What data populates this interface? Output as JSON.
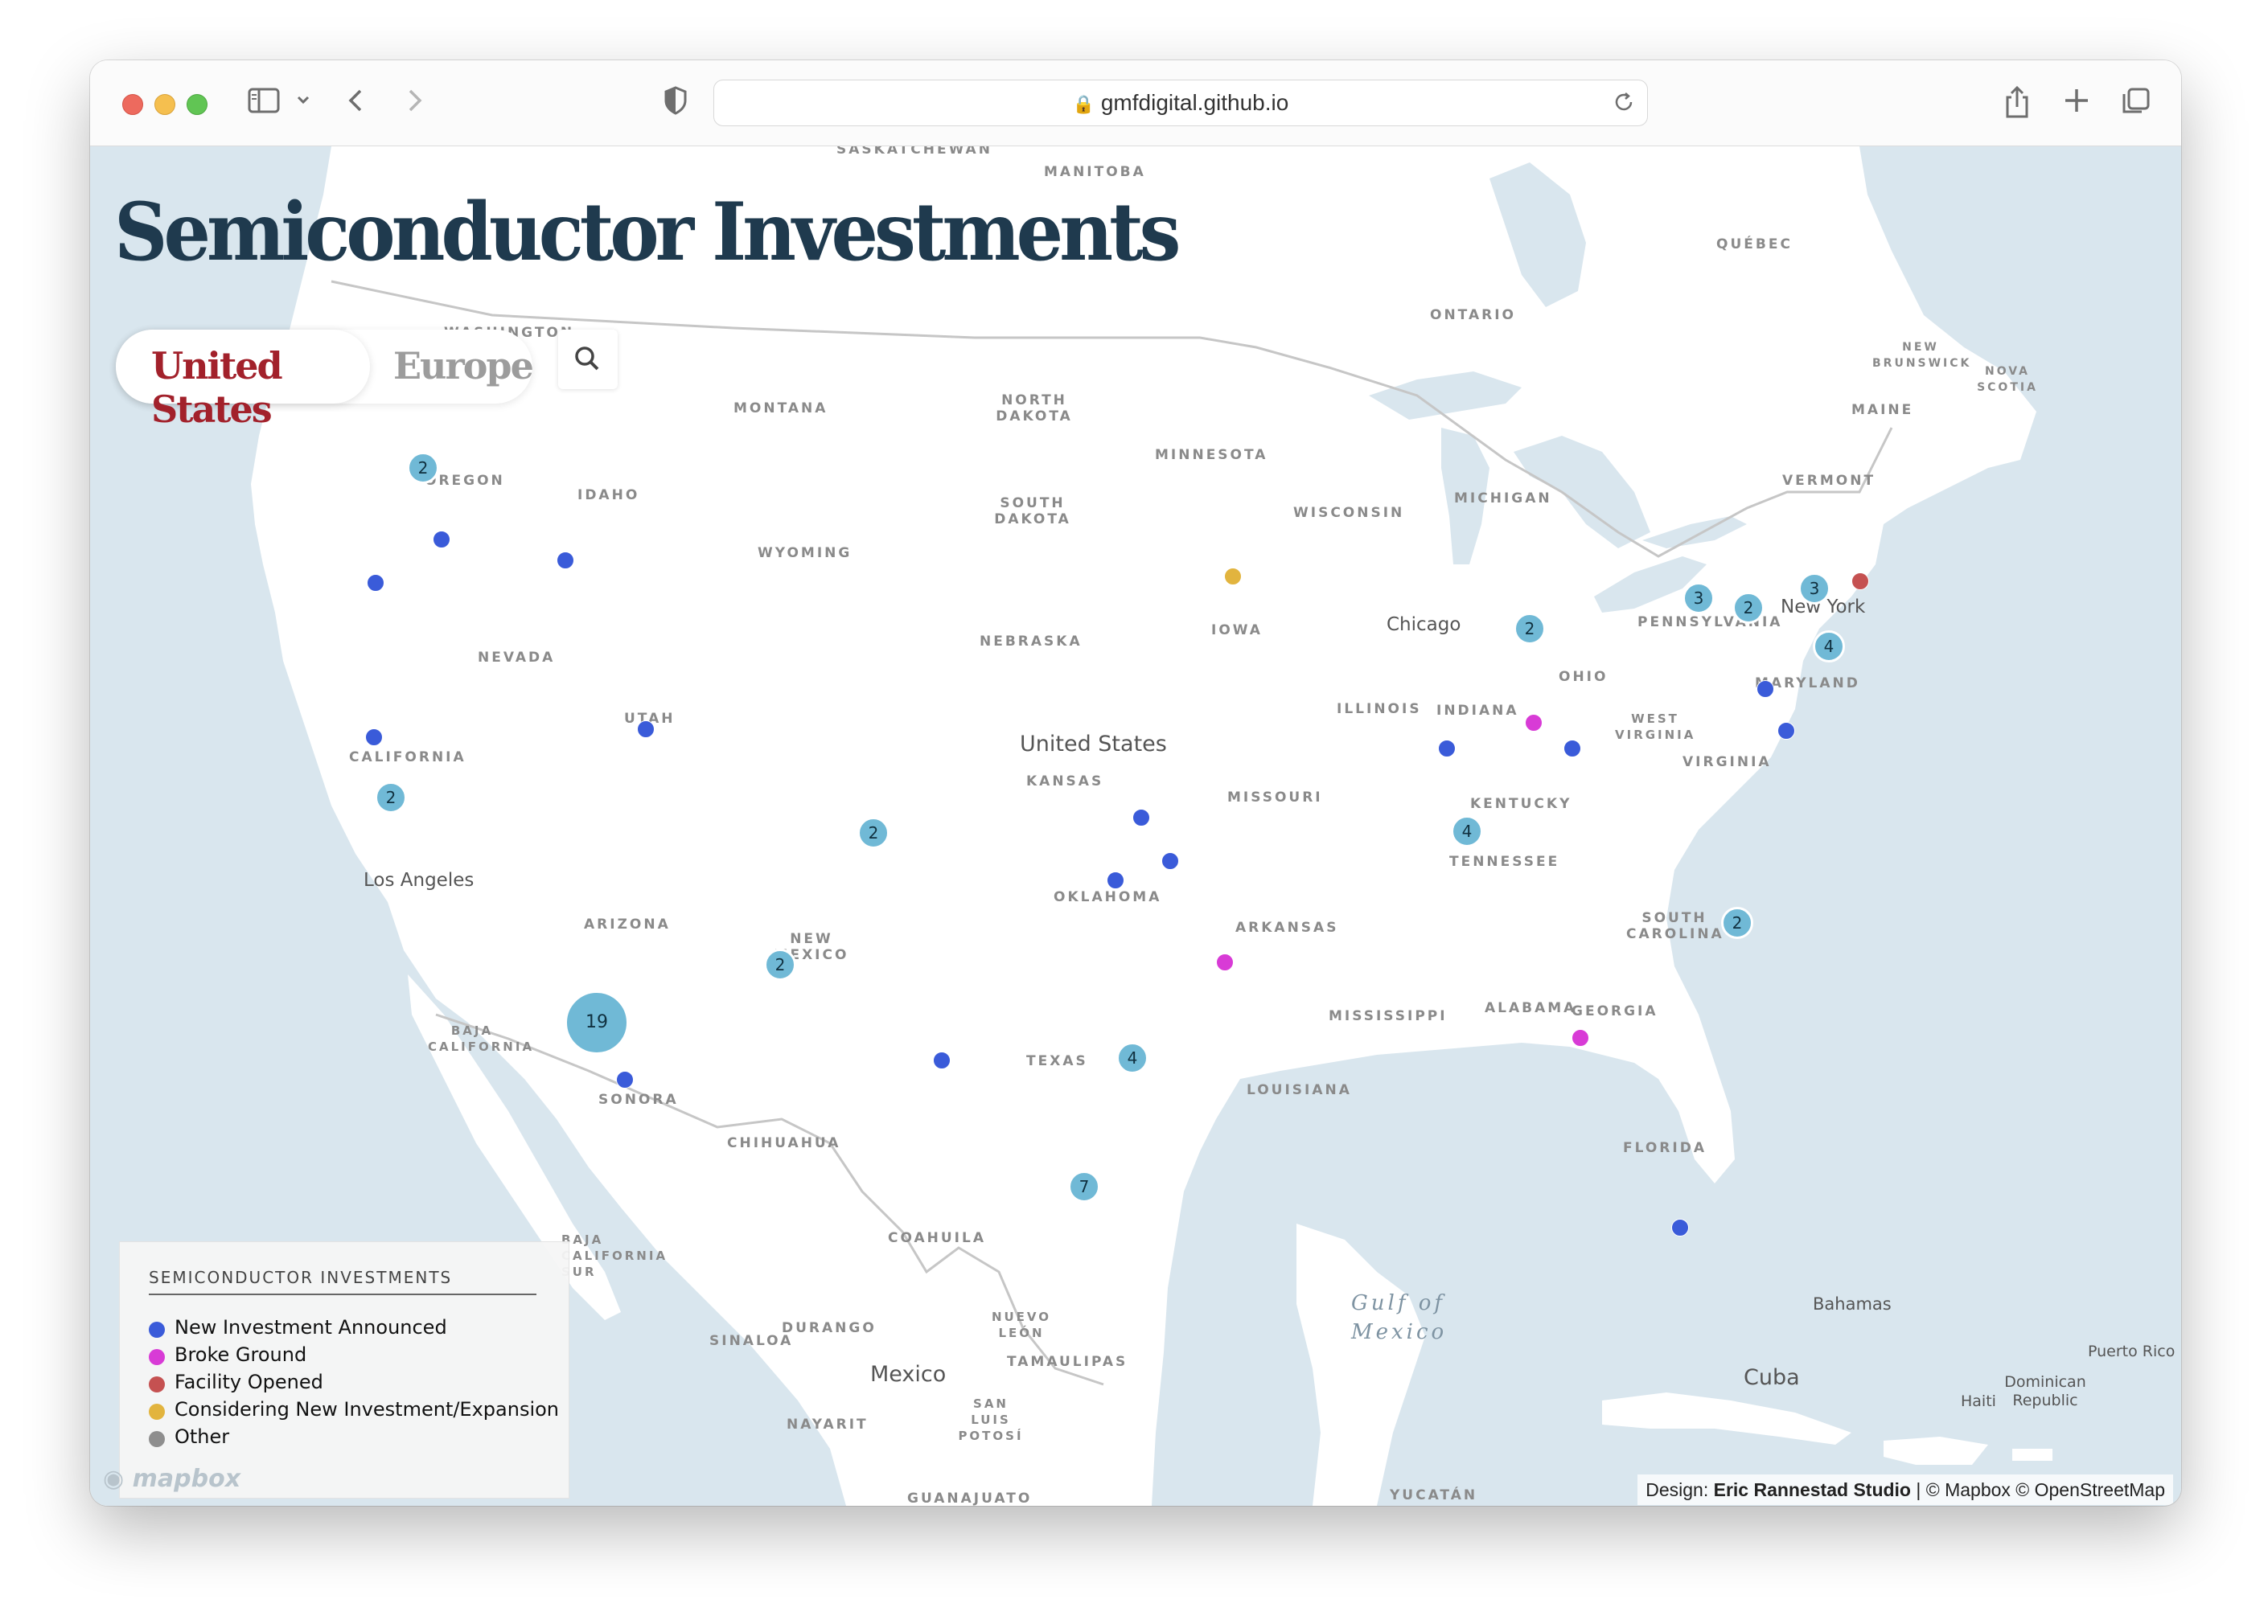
{
  "browser": {
    "url": "gmfdigital.github.io"
  },
  "page": {
    "title": "Semiconductor Investments",
    "tabs": [
      {
        "label": "United States",
        "active": true
      },
      {
        "label": "Europe",
        "active": false
      }
    ],
    "search_icon": "search-icon"
  },
  "map_labels": {
    "regions": [
      "SASKATCHEWAN",
      "MANITOBA",
      "QUÉBEC",
      "ONTARIO",
      "NEW BRUNSWICK",
      "NOVA SCOTIA",
      "WASHINGTON",
      "MONTANA",
      "NORTH DAKOTA",
      "MINNESOTA",
      "MAINE",
      "VERMONT",
      "OREGON",
      "IDAHO",
      "SOUTH DAKOTA",
      "WISCONSIN",
      "MICHIGAN",
      "WYOMING",
      "PENNSYLVANIA",
      "NEBRASKA",
      "IOWA",
      "NEVADA",
      "OHIO",
      "MARYLAND",
      "ILLINOIS",
      "INDIANA",
      "UTAH",
      "WEST VIRGINIA",
      "CALIFORNIA",
      "KANSAS",
      "MISSOURI",
      "VIRGINIA",
      "KENTUCKY",
      "TENNESSEE",
      "ARIZONA",
      "OKLAHOMA",
      "NEW MEXICO",
      "ARKANSAS",
      "SOUTH CAROLINA",
      "MISSISSIPPI",
      "ALABAMA",
      "GEORGIA",
      "TEXAS",
      "BAJA CALIFORNIA",
      "LOUISIANA",
      "SONORA",
      "CHIHUAHUA",
      "FLORIDA",
      "COAHUILA",
      "BAJA CALIFORNIA SUR",
      "SINALOA",
      "DURANGO",
      "NUEVO LEÓN",
      "TAMAULIPAS",
      "NAYARIT",
      "SAN LUIS POTOSÍ",
      "GUANAJUATO",
      "YUCATÁN"
    ],
    "cities": [
      "Chicago",
      "New York",
      "Los Angeles"
    ],
    "countries": [
      "United States",
      "Mexico",
      "Cuba",
      "Bahamas",
      "Puerto Rico",
      "Haiti",
      "Dominican Republic"
    ],
    "water": [
      "Gulf of",
      "Mexico"
    ]
  },
  "clusters": [
    "2",
    "2",
    "3",
    "2",
    "3",
    "4",
    "2",
    "4",
    "2",
    "2",
    "19",
    "4",
    "7"
  ],
  "legend": {
    "title": "SEMICONDUCTOR INVESTMENTS",
    "items": [
      {
        "label": "New Investment Announced",
        "color": "#3a5bd9"
      },
      {
        "label": "Broke Ground",
        "color": "#d83bd6"
      },
      {
        "label": "Facility Opened",
        "color": "#c55151"
      },
      {
        "label": "Considering New Investment/Expansion",
        "color": "#e2b43e"
      },
      {
        "label": "Other",
        "color": "#8e8e8e"
      }
    ]
  },
  "footer": {
    "logo": "mapbox",
    "attribution_prefix": "Design: ",
    "attribution_studio": "Eric Rannestad Studio",
    "attribution_suffix": " | © Mapbox © OpenStreetMap"
  },
  "colors": {
    "cluster": "#70b9d6",
    "title": "#1f3a4e",
    "active_tab": "#a2212b",
    "water": "#d9e6ee",
    "land": "#ffffff"
  }
}
